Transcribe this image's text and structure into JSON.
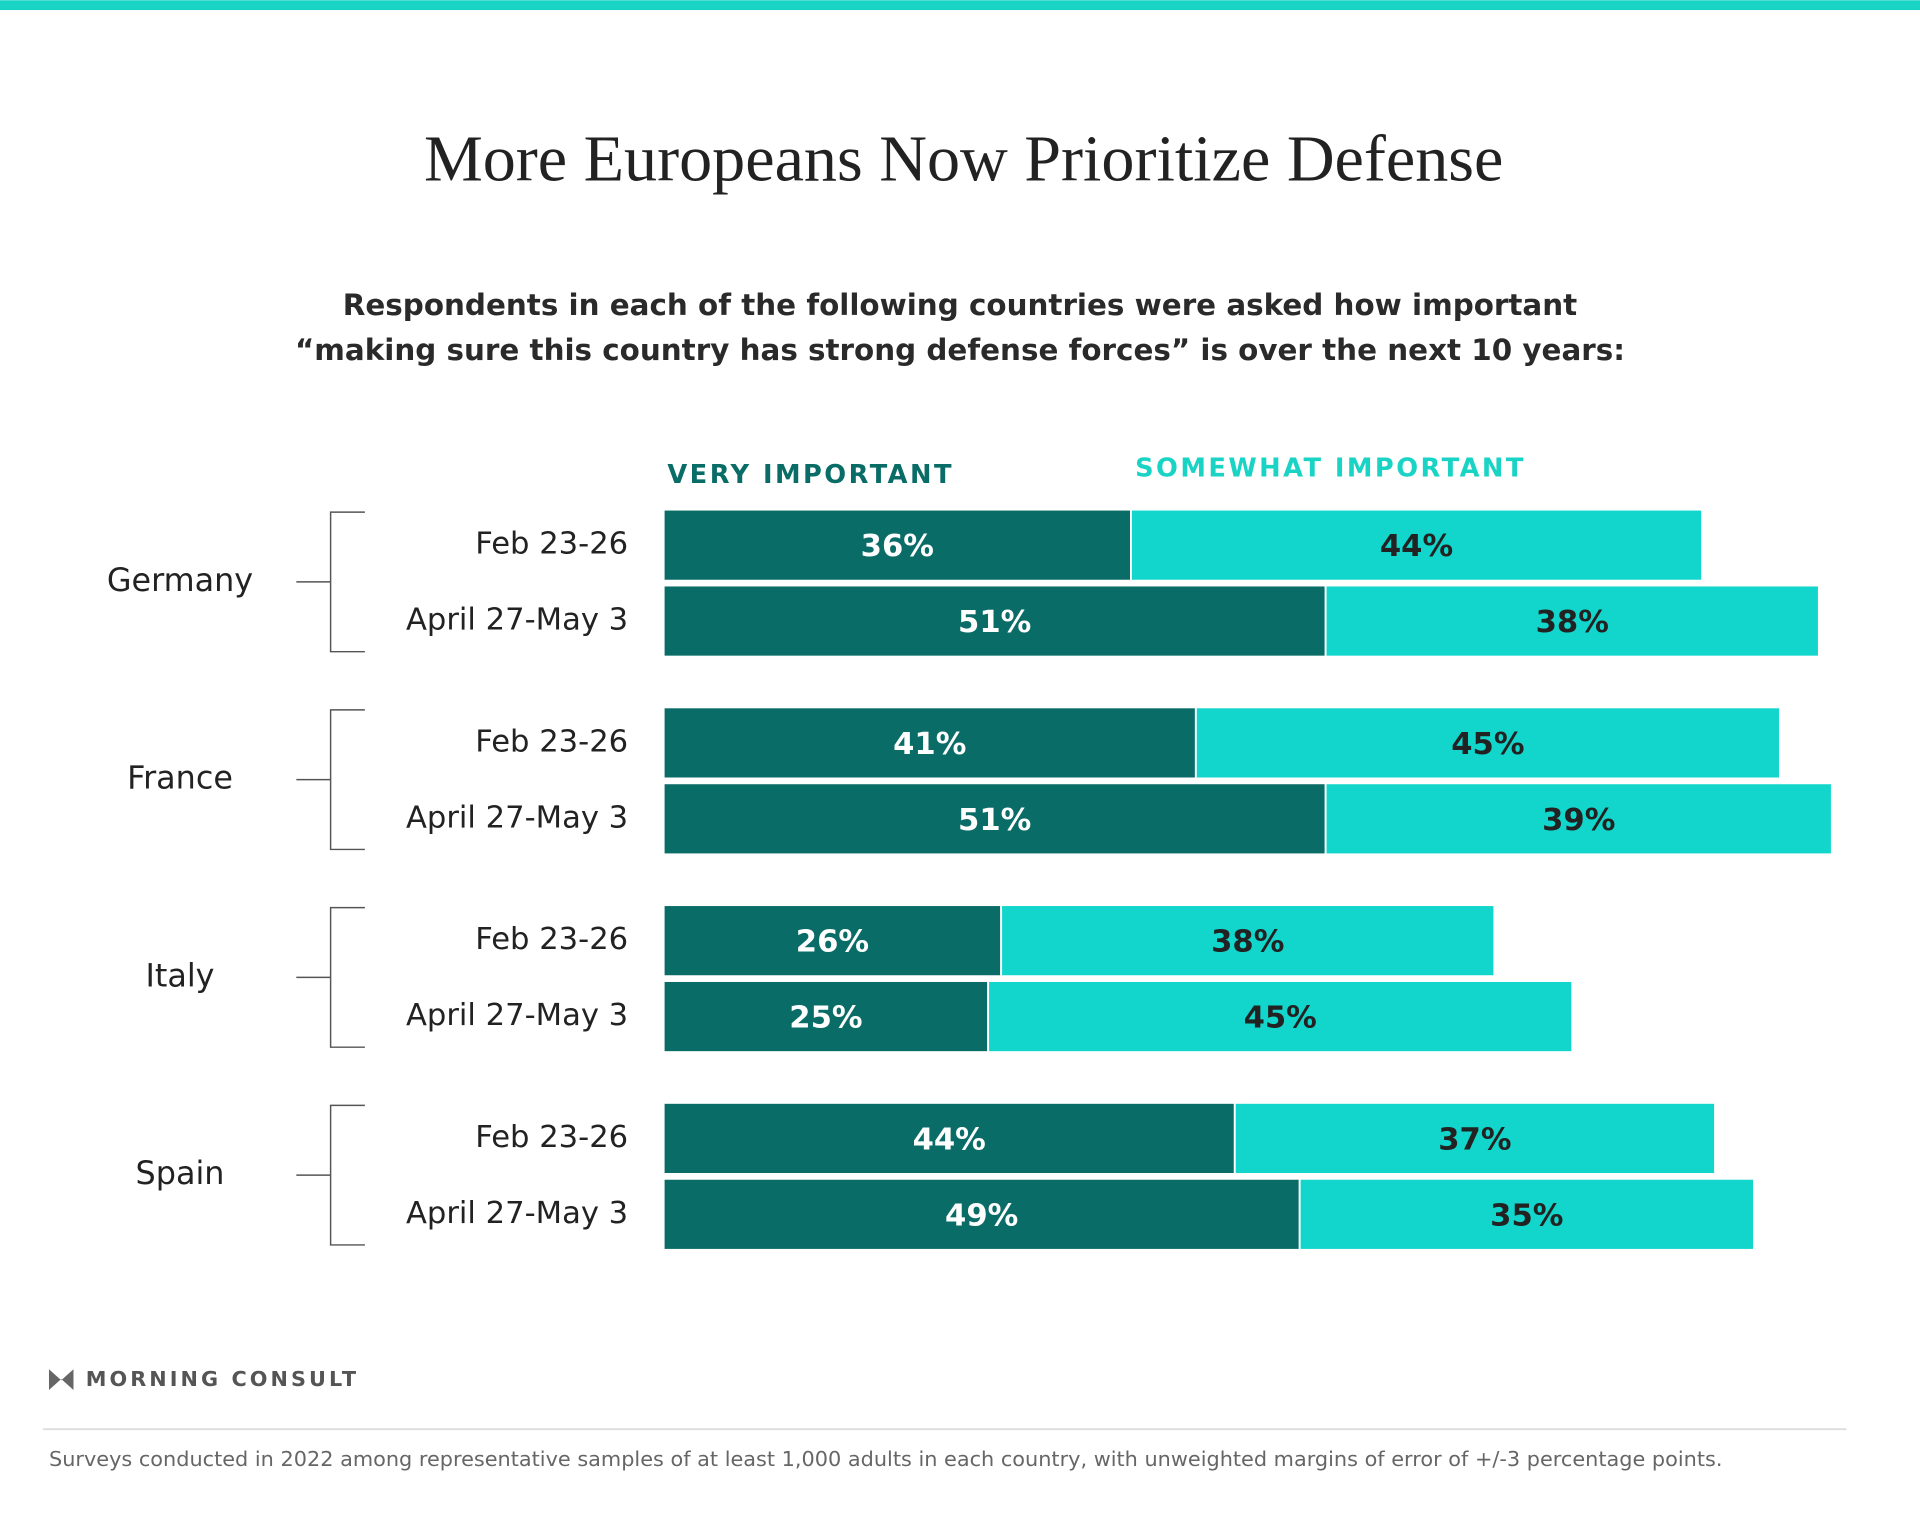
{
  "chart_data": {
    "type": "stacked-bar",
    "title": "More Europeans Now Prioritize Defense",
    "subtitle_lines": [
      "Respondents in each of the following countries were asked how important",
      "“making sure this country has strong defense forces” is over the next 10 years:"
    ],
    "groups": [
      "Germany",
      "France",
      "Italy",
      "Spain"
    ],
    "categories": [
      "Feb 23-26",
      "April 27-May 3",
      "Feb 23-26",
      "April 27-May 3",
      "Feb 23-26",
      "April 27-May 3",
      "Feb 23-26",
      "April 27-May 3"
    ],
    "series": [
      {
        "name": "VERY IMPORTANT",
        "color": "#0a6c67",
        "label_color": "#ffffff",
        "values": [
          36,
          51,
          41,
          51,
          26,
          25,
          44,
          49
        ],
        "value_labels": [
          "36%",
          "51%",
          "41%",
          "51%",
          "26%",
          "25%",
          "44%",
          "49%"
        ]
      },
      {
        "name": "SOMEWHAT IMPORTANT",
        "color": "#12d6cb",
        "label_color": "#222222",
        "values": [
          44,
          38,
          45,
          39,
          38,
          45,
          37,
          35
        ],
        "value_labels": [
          "44%",
          "38%",
          "45%",
          "39%",
          "38%",
          "45%",
          "37%",
          "35%"
        ]
      }
    ],
    "brand": "MORNING CONSULT",
    "footnote": "Surveys conducted in 2022 among representative samples of at least 1,000 adults in each country, with unweighted margins of error of +/-3 percentage points."
  }
}
